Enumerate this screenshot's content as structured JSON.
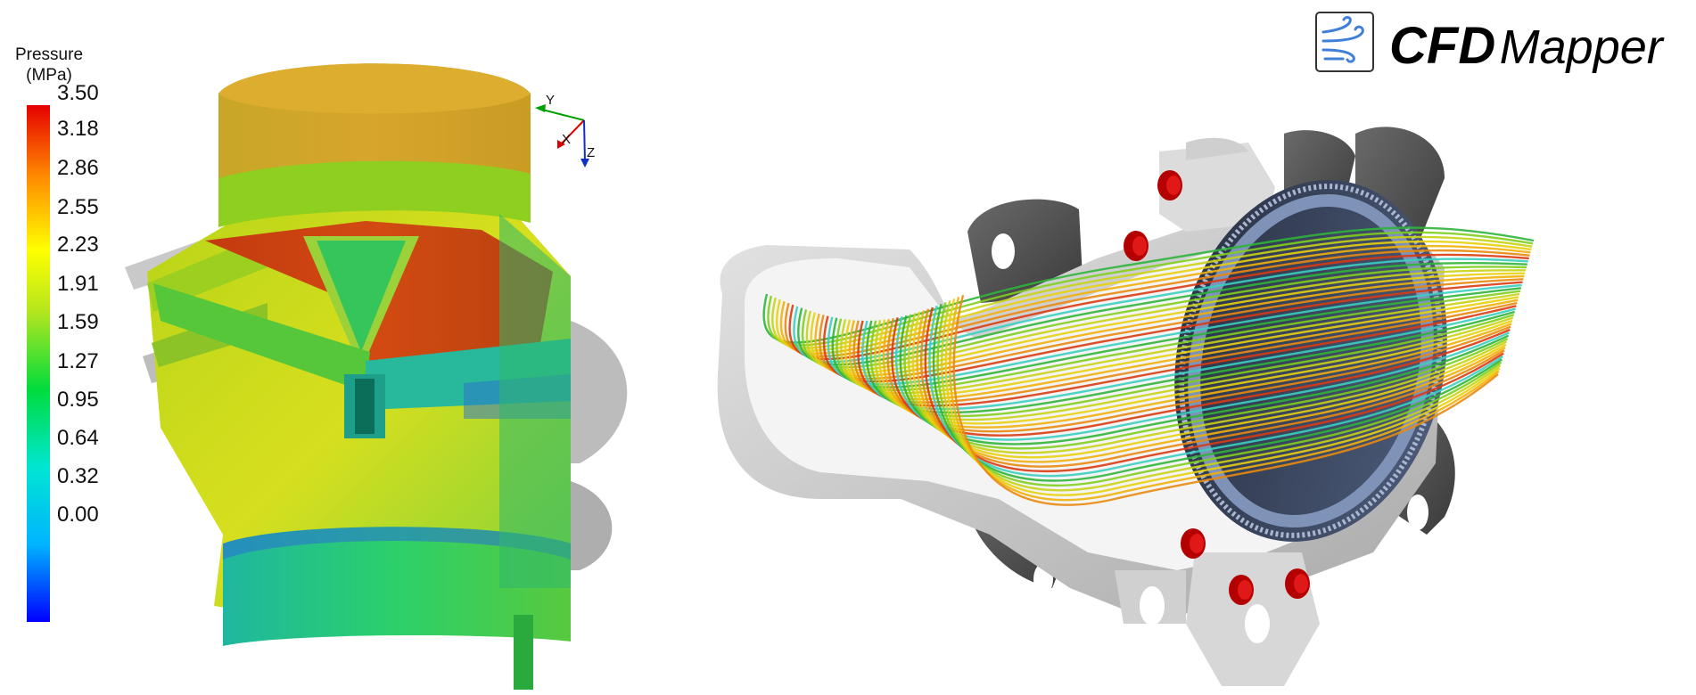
{
  "legend": {
    "title_line1": "Pressure",
    "title_line2": "(MPa)",
    "ticks": [
      "3.50",
      "3.18",
      "2.86",
      "2.55",
      "2.23",
      "1.91",
      "1.59",
      "1.27",
      "0.95",
      "0.64",
      "0.32",
      "0.00"
    ],
    "colors": [
      "#0000ff",
      "#00b4ff",
      "#00e6d2",
      "#00dc3c",
      "#b4e61e",
      "#ffff00",
      "#ff8c00",
      "#e60000"
    ]
  },
  "axes": {
    "y": "Y",
    "x": "X",
    "z": "Z"
  },
  "logo": {
    "bold": "CFD",
    "regular": "Mapper",
    "icon": "wind-icon"
  }
}
